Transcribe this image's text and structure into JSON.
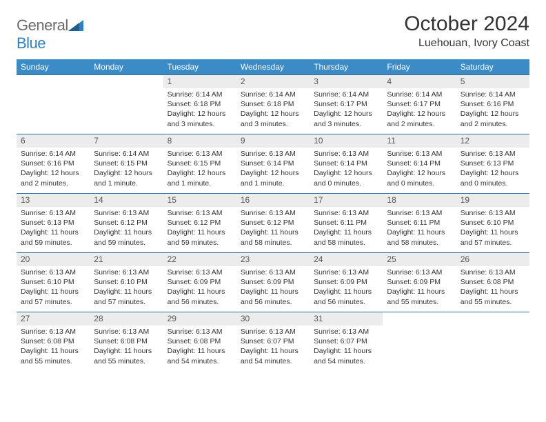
{
  "logo": {
    "general": "General",
    "blue": "Blue"
  },
  "title": "October 2024",
  "location": "Luehouan, Ivory Coast",
  "colors": {
    "header_bg": "#3b8bc7",
    "header_text": "#ffffff",
    "daynum_bg": "#ececec",
    "border": "#2f6fa3",
    "logo_gray": "#6b6b6b",
    "logo_blue": "#2f80c3"
  },
  "weekdays": [
    "Sunday",
    "Monday",
    "Tuesday",
    "Wednesday",
    "Thursday",
    "Friday",
    "Saturday"
  ],
  "weeks": [
    [
      {
        "n": "",
        "sunrise": "",
        "sunset": "",
        "daylight": ""
      },
      {
        "n": "",
        "sunrise": "",
        "sunset": "",
        "daylight": ""
      },
      {
        "n": "1",
        "sunrise": "Sunrise: 6:14 AM",
        "sunset": "Sunset: 6:18 PM",
        "daylight": "Daylight: 12 hours and 3 minutes."
      },
      {
        "n": "2",
        "sunrise": "Sunrise: 6:14 AM",
        "sunset": "Sunset: 6:18 PM",
        "daylight": "Daylight: 12 hours and 3 minutes."
      },
      {
        "n": "3",
        "sunrise": "Sunrise: 6:14 AM",
        "sunset": "Sunset: 6:17 PM",
        "daylight": "Daylight: 12 hours and 3 minutes."
      },
      {
        "n": "4",
        "sunrise": "Sunrise: 6:14 AM",
        "sunset": "Sunset: 6:17 PM",
        "daylight": "Daylight: 12 hours and 2 minutes."
      },
      {
        "n": "5",
        "sunrise": "Sunrise: 6:14 AM",
        "sunset": "Sunset: 6:16 PM",
        "daylight": "Daylight: 12 hours and 2 minutes."
      }
    ],
    [
      {
        "n": "6",
        "sunrise": "Sunrise: 6:14 AM",
        "sunset": "Sunset: 6:16 PM",
        "daylight": "Daylight: 12 hours and 2 minutes."
      },
      {
        "n": "7",
        "sunrise": "Sunrise: 6:14 AM",
        "sunset": "Sunset: 6:15 PM",
        "daylight": "Daylight: 12 hours and 1 minute."
      },
      {
        "n": "8",
        "sunrise": "Sunrise: 6:13 AM",
        "sunset": "Sunset: 6:15 PM",
        "daylight": "Daylight: 12 hours and 1 minute."
      },
      {
        "n": "9",
        "sunrise": "Sunrise: 6:13 AM",
        "sunset": "Sunset: 6:14 PM",
        "daylight": "Daylight: 12 hours and 1 minute."
      },
      {
        "n": "10",
        "sunrise": "Sunrise: 6:13 AM",
        "sunset": "Sunset: 6:14 PM",
        "daylight": "Daylight: 12 hours and 0 minutes."
      },
      {
        "n": "11",
        "sunrise": "Sunrise: 6:13 AM",
        "sunset": "Sunset: 6:14 PM",
        "daylight": "Daylight: 12 hours and 0 minutes."
      },
      {
        "n": "12",
        "sunrise": "Sunrise: 6:13 AM",
        "sunset": "Sunset: 6:13 PM",
        "daylight": "Daylight: 12 hours and 0 minutes."
      }
    ],
    [
      {
        "n": "13",
        "sunrise": "Sunrise: 6:13 AM",
        "sunset": "Sunset: 6:13 PM",
        "daylight": "Daylight: 11 hours and 59 minutes."
      },
      {
        "n": "14",
        "sunrise": "Sunrise: 6:13 AM",
        "sunset": "Sunset: 6:12 PM",
        "daylight": "Daylight: 11 hours and 59 minutes."
      },
      {
        "n": "15",
        "sunrise": "Sunrise: 6:13 AM",
        "sunset": "Sunset: 6:12 PM",
        "daylight": "Daylight: 11 hours and 59 minutes."
      },
      {
        "n": "16",
        "sunrise": "Sunrise: 6:13 AM",
        "sunset": "Sunset: 6:12 PM",
        "daylight": "Daylight: 11 hours and 58 minutes."
      },
      {
        "n": "17",
        "sunrise": "Sunrise: 6:13 AM",
        "sunset": "Sunset: 6:11 PM",
        "daylight": "Daylight: 11 hours and 58 minutes."
      },
      {
        "n": "18",
        "sunrise": "Sunrise: 6:13 AM",
        "sunset": "Sunset: 6:11 PM",
        "daylight": "Daylight: 11 hours and 58 minutes."
      },
      {
        "n": "19",
        "sunrise": "Sunrise: 6:13 AM",
        "sunset": "Sunset: 6:10 PM",
        "daylight": "Daylight: 11 hours and 57 minutes."
      }
    ],
    [
      {
        "n": "20",
        "sunrise": "Sunrise: 6:13 AM",
        "sunset": "Sunset: 6:10 PM",
        "daylight": "Daylight: 11 hours and 57 minutes."
      },
      {
        "n": "21",
        "sunrise": "Sunrise: 6:13 AM",
        "sunset": "Sunset: 6:10 PM",
        "daylight": "Daylight: 11 hours and 57 minutes."
      },
      {
        "n": "22",
        "sunrise": "Sunrise: 6:13 AM",
        "sunset": "Sunset: 6:09 PM",
        "daylight": "Daylight: 11 hours and 56 minutes."
      },
      {
        "n": "23",
        "sunrise": "Sunrise: 6:13 AM",
        "sunset": "Sunset: 6:09 PM",
        "daylight": "Daylight: 11 hours and 56 minutes."
      },
      {
        "n": "24",
        "sunrise": "Sunrise: 6:13 AM",
        "sunset": "Sunset: 6:09 PM",
        "daylight": "Daylight: 11 hours and 56 minutes."
      },
      {
        "n": "25",
        "sunrise": "Sunrise: 6:13 AM",
        "sunset": "Sunset: 6:09 PM",
        "daylight": "Daylight: 11 hours and 55 minutes."
      },
      {
        "n": "26",
        "sunrise": "Sunrise: 6:13 AM",
        "sunset": "Sunset: 6:08 PM",
        "daylight": "Daylight: 11 hours and 55 minutes."
      }
    ],
    [
      {
        "n": "27",
        "sunrise": "Sunrise: 6:13 AM",
        "sunset": "Sunset: 6:08 PM",
        "daylight": "Daylight: 11 hours and 55 minutes."
      },
      {
        "n": "28",
        "sunrise": "Sunrise: 6:13 AM",
        "sunset": "Sunset: 6:08 PM",
        "daylight": "Daylight: 11 hours and 55 minutes."
      },
      {
        "n": "29",
        "sunrise": "Sunrise: 6:13 AM",
        "sunset": "Sunset: 6:08 PM",
        "daylight": "Daylight: 11 hours and 54 minutes."
      },
      {
        "n": "30",
        "sunrise": "Sunrise: 6:13 AM",
        "sunset": "Sunset: 6:07 PM",
        "daylight": "Daylight: 11 hours and 54 minutes."
      },
      {
        "n": "31",
        "sunrise": "Sunrise: 6:13 AM",
        "sunset": "Sunset: 6:07 PM",
        "daylight": "Daylight: 11 hours and 54 minutes."
      },
      {
        "n": "",
        "sunrise": "",
        "sunset": "",
        "daylight": ""
      },
      {
        "n": "",
        "sunrise": "",
        "sunset": "",
        "daylight": ""
      }
    ]
  ]
}
